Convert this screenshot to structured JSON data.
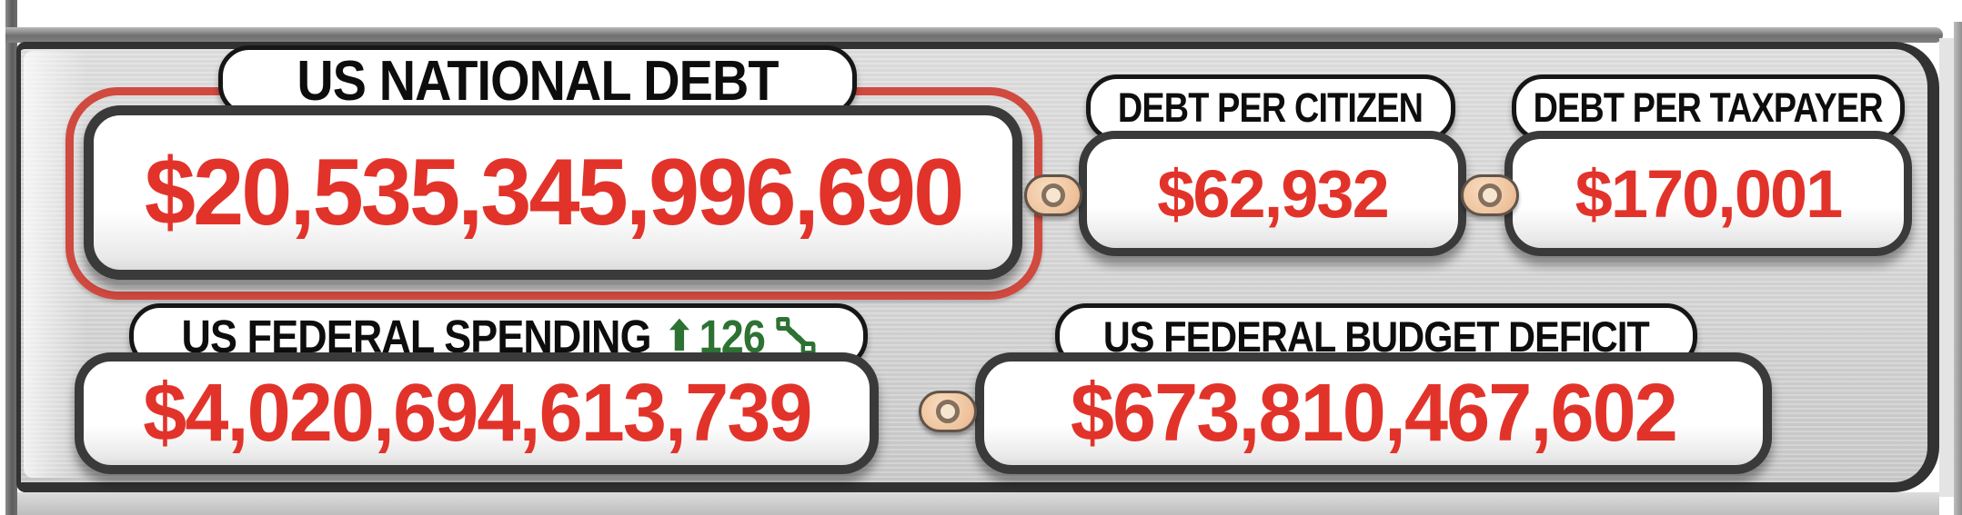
{
  "widget": {
    "national_debt": {
      "label": "US NATIONAL DEBT",
      "value": "$20,535,345,996,690"
    },
    "debt_per_citizen": {
      "label": "DEBT PER CITIZEN",
      "value": "$62,932"
    },
    "debt_per_taxpayer": {
      "label": "DEBT PER TAXPAYER",
      "value": "$170,001"
    },
    "federal_spending": {
      "label": "US FEDERAL SPENDING",
      "change_arrow": "⬆",
      "change_percent": "126",
      "change_unit": "%",
      "value": "$4,020,694,613,739"
    },
    "budget_deficit": {
      "label": "US FEDERAL BUDGET DEFICIT",
      "value": "$673,810,467,602"
    }
  },
  "icons": {
    "up_arrow_icon": "⬆",
    "percent_icon": "%",
    "connector_rivet_icon": "oval-grommet"
  },
  "colors": {
    "value_red": "#e2332a",
    "change_green": "#2d7233",
    "highlight_ring_red": "#d04a40",
    "rivet_fill": "#eec29c",
    "panel_gray": "#d6d6d6",
    "frame_dark": "#323232",
    "label_black": "#0d0d0d"
  }
}
